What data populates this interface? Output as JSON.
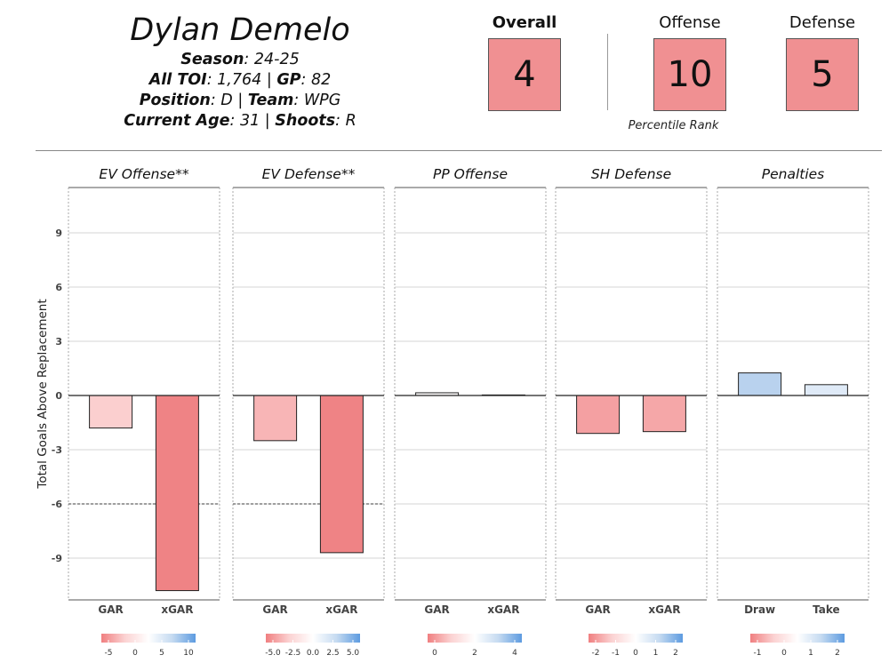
{
  "player": {
    "name": "Dylan Demelo",
    "season_label": "Season",
    "season": "24-25",
    "toi_label": "All TOI",
    "toi": "1,764",
    "gp_label": "GP",
    "gp": "82",
    "position_label": "Position",
    "position": "D",
    "team_label": "Team",
    "team": "WPG",
    "age_label": "Current Age",
    "age": "31",
    "shoots_label": "Shoots",
    "shoots": "R"
  },
  "ranks": {
    "overall_label": "Overall",
    "overall": "4",
    "offense_label": "Offense",
    "offense": "10",
    "defense_label": "Defense",
    "defense": "5",
    "caption": "Percentile Rank",
    "box_color": "#f09092"
  },
  "chart_data": {
    "type": "bar",
    "ylabel": "Total Goals Above Replacement",
    "ylim": [
      -11.3,
      11.3
    ],
    "yticks": [
      -9,
      -6,
      -3,
      0,
      3,
      6,
      9
    ],
    "ytick_labels": [
      "-9",
      "-6",
      "-3",
      "0",
      "3",
      "6",
      "9"
    ],
    "reference_line": -6,
    "panels": [
      {
        "title": "EV Offense**",
        "categories": [
          "GAR",
          "xGAR"
        ],
        "values": [
          -1.8,
          -10.8
        ],
        "colors": [
          "#fbcfcf",
          "#ef8385"
        ],
        "dashed_ref": true,
        "legend_ticks": [
          "-5",
          "0",
          "5",
          "10"
        ]
      },
      {
        "title": "EV Defense**",
        "categories": [
          "GAR",
          "xGAR"
        ],
        "values": [
          -2.5,
          -8.7
        ],
        "colors": [
          "#f8b5b6",
          "#ef8385"
        ],
        "dashed_ref": true,
        "legend_ticks": [
          "-5.0",
          "-2.5",
          "0.0",
          "2.5",
          "5.0"
        ]
      },
      {
        "title": "PP Offense",
        "categories": [
          "GAR",
          "xGAR"
        ],
        "values": [
          0.15,
          0.03
        ],
        "colors": [
          "#fdfbfb",
          "#fdfdfd"
        ],
        "dashed_ref": false,
        "legend_ticks": [
          "0",
          "2",
          "4"
        ]
      },
      {
        "title": "SH Defense",
        "categories": [
          "GAR",
          "xGAR"
        ],
        "values": [
          -2.1,
          -2.0
        ],
        "colors": [
          "#f4a0a2",
          "#f5a7a8"
        ],
        "dashed_ref": false,
        "legend_ticks": [
          "-2",
          "-1",
          "0",
          "1",
          "2"
        ]
      },
      {
        "title": "Penalties",
        "categories": [
          "Draw",
          "Take"
        ],
        "values": [
          1.25,
          0.6
        ],
        "colors": [
          "#b9d2ee",
          "#dfeaf7"
        ],
        "dashed_ref": false,
        "legend_ticks": [
          "-1",
          "0",
          "1",
          "2"
        ]
      }
    ],
    "legend_gradient": [
      "#f07f80",
      "#fbd2d2",
      "#ffffff",
      "#c6dbf1",
      "#5d9be0"
    ]
  }
}
